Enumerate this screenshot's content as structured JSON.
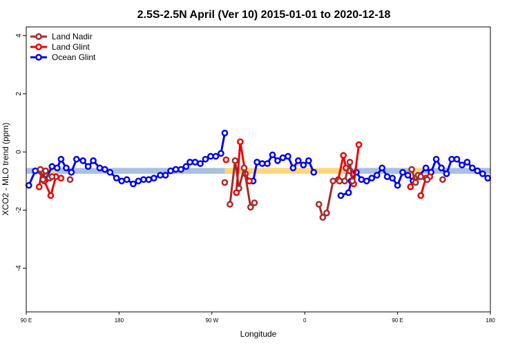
{
  "chart_data": {
    "type": "line",
    "title": "2.5S-2.5N April (Ver 10)   2015-01-01 to 2020-12-18",
    "xlabel": "Longitude",
    "ylabel": "XCO2 - MLO trend (ppm)",
    "xlim": [
      0,
      360
    ],
    "ylim": [
      -5.5,
      4.3
    ],
    "yticks": [
      4,
      2,
      0,
      -2,
      -4
    ],
    "xticks": [
      {
        "x": 0,
        "label": "90 E"
      },
      {
        "x": 72,
        "label": "180"
      },
      {
        "x": 144,
        "label": "90 W"
      },
      {
        "x": 216,
        "label": "0"
      },
      {
        "x": 288,
        "label": "90 E"
      },
      {
        "x": 360,
        "label": "180"
      }
    ],
    "grid": false,
    "legend_position": "top-left",
    "colors": {
      "band_blue": "#a8c0e2",
      "band_yellow": "#fdd67a",
      "land_nadir": "#a52a2a",
      "land_glint": "#ee0000",
      "ocean_glint": "#0000ee"
    },
    "bands": [
      {
        "name": "",
        "color": "blue",
        "y_low": -0.75,
        "y_high": -0.55,
        "segments": [
          [
            0,
            14
          ],
          [
            24,
            154
          ],
          [
            246,
            300
          ],
          [
            307,
            360
          ]
        ]
      },
      {
        "name": "",
        "color": "yellow",
        "y_low": -0.75,
        "y_high": -0.55,
        "segments": [
          [
            14,
            24
          ],
          [
            154,
            246
          ],
          [
            300,
            307
          ]
        ]
      }
    ],
    "series": [
      {
        "name": "Ocean Glint",
        "color": "#0000ee",
        "segments": [
          [
            [
              2,
              -1.15
            ],
            [
              7,
              -0.65
            ],
            [
              11,
              -0.65
            ],
            [
              15,
              -0.95
            ],
            [
              20,
              -0.5
            ],
            [
              24,
              -0.55
            ],
            [
              27,
              -0.25
            ],
            [
              31,
              -0.55
            ],
            [
              35,
              -0.7
            ],
            [
              39,
              -0.25
            ],
            [
              44,
              -0.3
            ],
            [
              48,
              -0.5
            ],
            [
              52,
              -0.3
            ],
            [
              57,
              -0.55
            ],
            [
              61,
              -0.6
            ],
            [
              65,
              -0.7
            ],
            [
              70,
              -0.9
            ],
            [
              74,
              -1.0
            ],
            [
              78,
              -0.95
            ],
            [
              83,
              -1.1
            ],
            [
              87,
              -1.0
            ],
            [
              91,
              -0.95
            ],
            [
              95,
              -0.95
            ],
            [
              99,
              -0.9
            ],
            [
              104,
              -0.8
            ],
            [
              108,
              -0.8
            ],
            [
              112,
              -0.65
            ],
            [
              116,
              -0.6
            ],
            [
              120,
              -0.6
            ],
            [
              124,
              -0.5
            ],
            [
              127,
              -0.35
            ],
            [
              131,
              -0.35
            ],
            [
              135,
              -0.4
            ],
            [
              139,
              -0.25
            ],
            [
              143,
              -0.15
            ],
            [
              147,
              -0.15
            ],
            [
              151,
              -0.05
            ],
            [
              154,
              0.65
            ]
          ],
          [
            [
              176,
              -1.0
            ],
            [
              179,
              -0.35
            ],
            [
              183,
              -0.4
            ],
            [
              187,
              -0.4
            ],
            [
              191,
              -0.1
            ],
            [
              195,
              -0.3
            ],
            [
              199,
              -0.2
            ],
            [
              203,
              -0.15
            ],
            [
              207,
              -0.55
            ],
            [
              211,
              -0.3
            ],
            [
              215,
              -0.45
            ],
            [
              219,
              -0.3
            ],
            [
              223,
              -0.7
            ]
          ],
          [
            [
              244,
              -1.5
            ],
            [
              250,
              -1.4
            ],
            [
              252,
              -1.0
            ],
            [
              256,
              -0.7
            ],
            [
              260,
              -0.95
            ],
            [
              264,
              -1.0
            ],
            [
              268,
              -0.9
            ],
            [
              272,
              -0.8
            ],
            [
              276,
              -0.55
            ],
            [
              280,
              -0.85
            ],
            [
              284,
              -0.9
            ],
            [
              288,
              -1.15
            ],
            [
              292,
              -0.7
            ],
            [
              296,
              -0.8
            ],
            [
              300,
              -1.0
            ],
            [
              304,
              -0.85
            ],
            [
              310,
              -0.55
            ],
            [
              314,
              -0.7
            ],
            [
              318,
              -0.25
            ],
            [
              322,
              -0.55
            ],
            [
              326,
              -0.75
            ],
            [
              330,
              -0.25
            ],
            [
              334,
              -0.25
            ],
            [
              338,
              -0.45
            ],
            [
              342,
              -0.35
            ],
            [
              346,
              -0.55
            ],
            [
              350,
              -0.65
            ],
            [
              354,
              -0.75
            ],
            [
              358,
              -0.9
            ]
          ]
        ]
      },
      {
        "name": "Land Glint",
        "color": "#ee0000",
        "segments": [
          [
            [
              10,
              -1.2
            ],
            [
              12,
              -0.7
            ],
            [
              14,
              -1.0
            ],
            [
              19,
              -1.5
            ],
            [
              23,
              -0.85
            ],
            [
              27,
              -0.9
            ]
          ],
          [
            [
              155,
              -0.27
            ]
          ],
          [
            [
              163,
              -1.4
            ],
            [
              166,
              0.35
            ],
            [
              170,
              -0.75
            ],
            [
              173,
              -1.0
            ]
          ],
          [
            [
              242,
              -0.95
            ],
            [
              246,
              -0.12
            ],
            [
              248,
              -0.55
            ],
            [
              251,
              -0.65
            ],
            [
              254,
              -1.1
            ],
            [
              258,
              0.25
            ]
          ],
          [
            [
              298,
              -1.2
            ],
            [
              302,
              -0.9
            ]
          ],
          [
            [
              306,
              -1.5
            ],
            [
              310,
              -0.9
            ],
            [
              313,
              -0.85
            ]
          ]
        ]
      },
      {
        "name": "Land Nadir",
        "color": "#a52a2a",
        "segments": [
          [
            [
              11,
              -0.6
            ],
            [
              13,
              -0.95
            ],
            [
              15,
              -0.65
            ],
            [
              18,
              -0.9
            ],
            [
              20,
              -0.85
            ]
          ],
          [
            [
              34,
              -0.95
            ]
          ],
          [
            [
              154,
              -1.05
            ]
          ],
          [
            [
              158,
              -1.8
            ],
            [
              162,
              -0.3
            ],
            [
              165,
              -1.25
            ],
            [
              169,
              -0.55
            ],
            [
              174,
              -1.9
            ],
            [
              177,
              -1.75
            ]
          ],
          [
            [
              227,
              -1.8
            ],
            [
              230,
              -2.25
            ],
            [
              233,
              -2.1
            ],
            [
              238,
              -1.0
            ],
            [
              243,
              -1.0
            ],
            [
              247,
              -1.0
            ],
            [
              251,
              -0.35
            ],
            [
              253,
              -1.0
            ]
          ],
          [
            [
              299,
              -0.6
            ],
            [
              302,
              -1.05
            ],
            [
              304,
              -0.8
            ]
          ],
          [
            [
              306,
              -0.85
            ],
            [
              311,
              -0.95
            ]
          ],
          [
            [
              323,
              -0.95
            ]
          ]
        ]
      }
    ]
  }
}
